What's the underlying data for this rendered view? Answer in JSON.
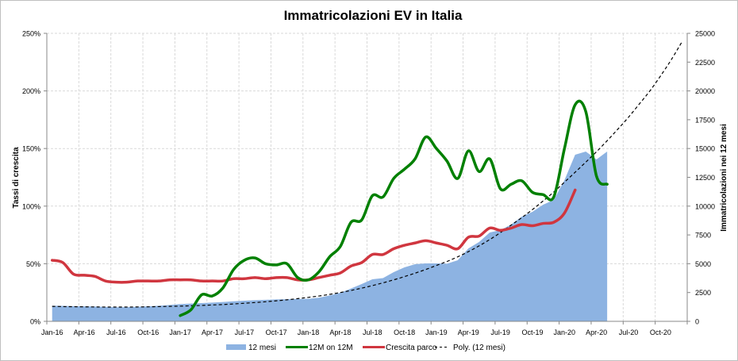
{
  "chart_data": {
    "type": "line",
    "title": "Immatricolazioni EV in Italia",
    "ylabel_left": "Tassi di crescita",
    "ylabel_right": "Immatricolazioni nei 12 mesi",
    "x_start_month": "2016-01",
    "x_end_month": "2020-12",
    "x_tick_labels": [
      "Jan-16",
      "Apr-16",
      "Jul-16",
      "Oct-16",
      "Jan-17",
      "Apr-17",
      "Jul-17",
      "Oct-17",
      "Jan-18",
      "Apr-18",
      "Jul-18",
      "Oct-18",
      "Jan-19",
      "Apr-19",
      "Jul-19",
      "Oct-19",
      "Jan-20",
      "Apr-20",
      "Jul-20",
      "Oct-20"
    ],
    "y_left": {
      "min": 0,
      "max": 250,
      "unit": "%",
      "tick_labels": [
        "0%",
        "50%",
        "100%",
        "150%",
        "200%",
        "250%"
      ]
    },
    "y_right": {
      "min": 0,
      "max": 25000,
      "tick_labels": [
        "0",
        "2500",
        "5000",
        "7500",
        "10000",
        "12500",
        "15000",
        "17500",
        "20000",
        "22500",
        "25000"
      ]
    },
    "grid": true,
    "legend_position": "bottom",
    "series": [
      {
        "name": "12 mesi",
        "type": "area",
        "axis": "right",
        "color": "#8DB3E2",
        "start_month": "2016-01",
        "values": [
          1350,
          1340,
          1320,
          1300,
          1280,
          1250,
          1220,
          1230,
          1260,
          1300,
          1350,
          1420,
          1500,
          1540,
          1580,
          1630,
          1680,
          1740,
          1790,
          1830,
          1870,
          1900,
          1920,
          1940,
          1950,
          2050,
          2250,
          2480,
          2850,
          3240,
          3650,
          3750,
          4270,
          4680,
          4960,
          5030,
          5030,
          5000,
          5300,
          6330,
          6890,
          7710,
          7920,
          8400,
          9090,
          9500,
          10120,
          10540,
          12260,
          14460,
          14740,
          14050,
          14740
        ]
      },
      {
        "name": "12M on 12M",
        "type": "line",
        "axis": "left",
        "color": "#008000",
        "start_month": "2017-01",
        "values": [
          5,
          10,
          23,
          22,
          29,
          45,
          53,
          55,
          50,
          49,
          50,
          38,
          36,
          43,
          56,
          65,
          86,
          88,
          109,
          108,
          124,
          132,
          141,
          160,
          150,
          139,
          124,
          148,
          130,
          141,
          115,
          119,
          122,
          112,
          110,
          108,
          150,
          188,
          182,
          126,
          119
        ]
      },
      {
        "name": "Crescita parco",
        "type": "line",
        "axis": "left",
        "color": "#D0363F",
        "start_month": "2016-01",
        "values": [
          53,
          51,
          41,
          40,
          39,
          35,
          34,
          34,
          35,
          35,
          35,
          36,
          36,
          36,
          35,
          35,
          35,
          37,
          37,
          38,
          37,
          38,
          38,
          36,
          36,
          38,
          40,
          42,
          48,
          51,
          58,
          58,
          63,
          66,
          68,
          70,
          68,
          66,
          63,
          73,
          74,
          81,
          79,
          81,
          84,
          83,
          85,
          86,
          94,
          114
        ]
      },
      {
        "name": "Poly. (12 mesi)",
        "type": "trendline",
        "axis": "right",
        "color": "#000000",
        "start_month": "2016-01",
        "values": [
          1300,
          1280,
          1270,
          1260,
          1250,
          1240,
          1240,
          1240,
          1250,
          1260,
          1280,
          1300,
          1320,
          1350,
          1380,
          1420,
          1460,
          1510,
          1570,
          1630,
          1700,
          1780,
          1870,
          1970,
          2080,
          2200,
          2340,
          2500,
          2680,
          2880,
          3100,
          3340,
          3600,
          3880,
          4180,
          4500,
          4850,
          5200,
          5600,
          6050,
          6550,
          7100,
          7700,
          8350,
          9000,
          9700,
          10450,
          11230,
          12080,
          12940,
          13820,
          14720,
          15680,
          16680,
          17720,
          18850,
          20000,
          21300,
          22700,
          24250
        ]
      }
    ]
  }
}
